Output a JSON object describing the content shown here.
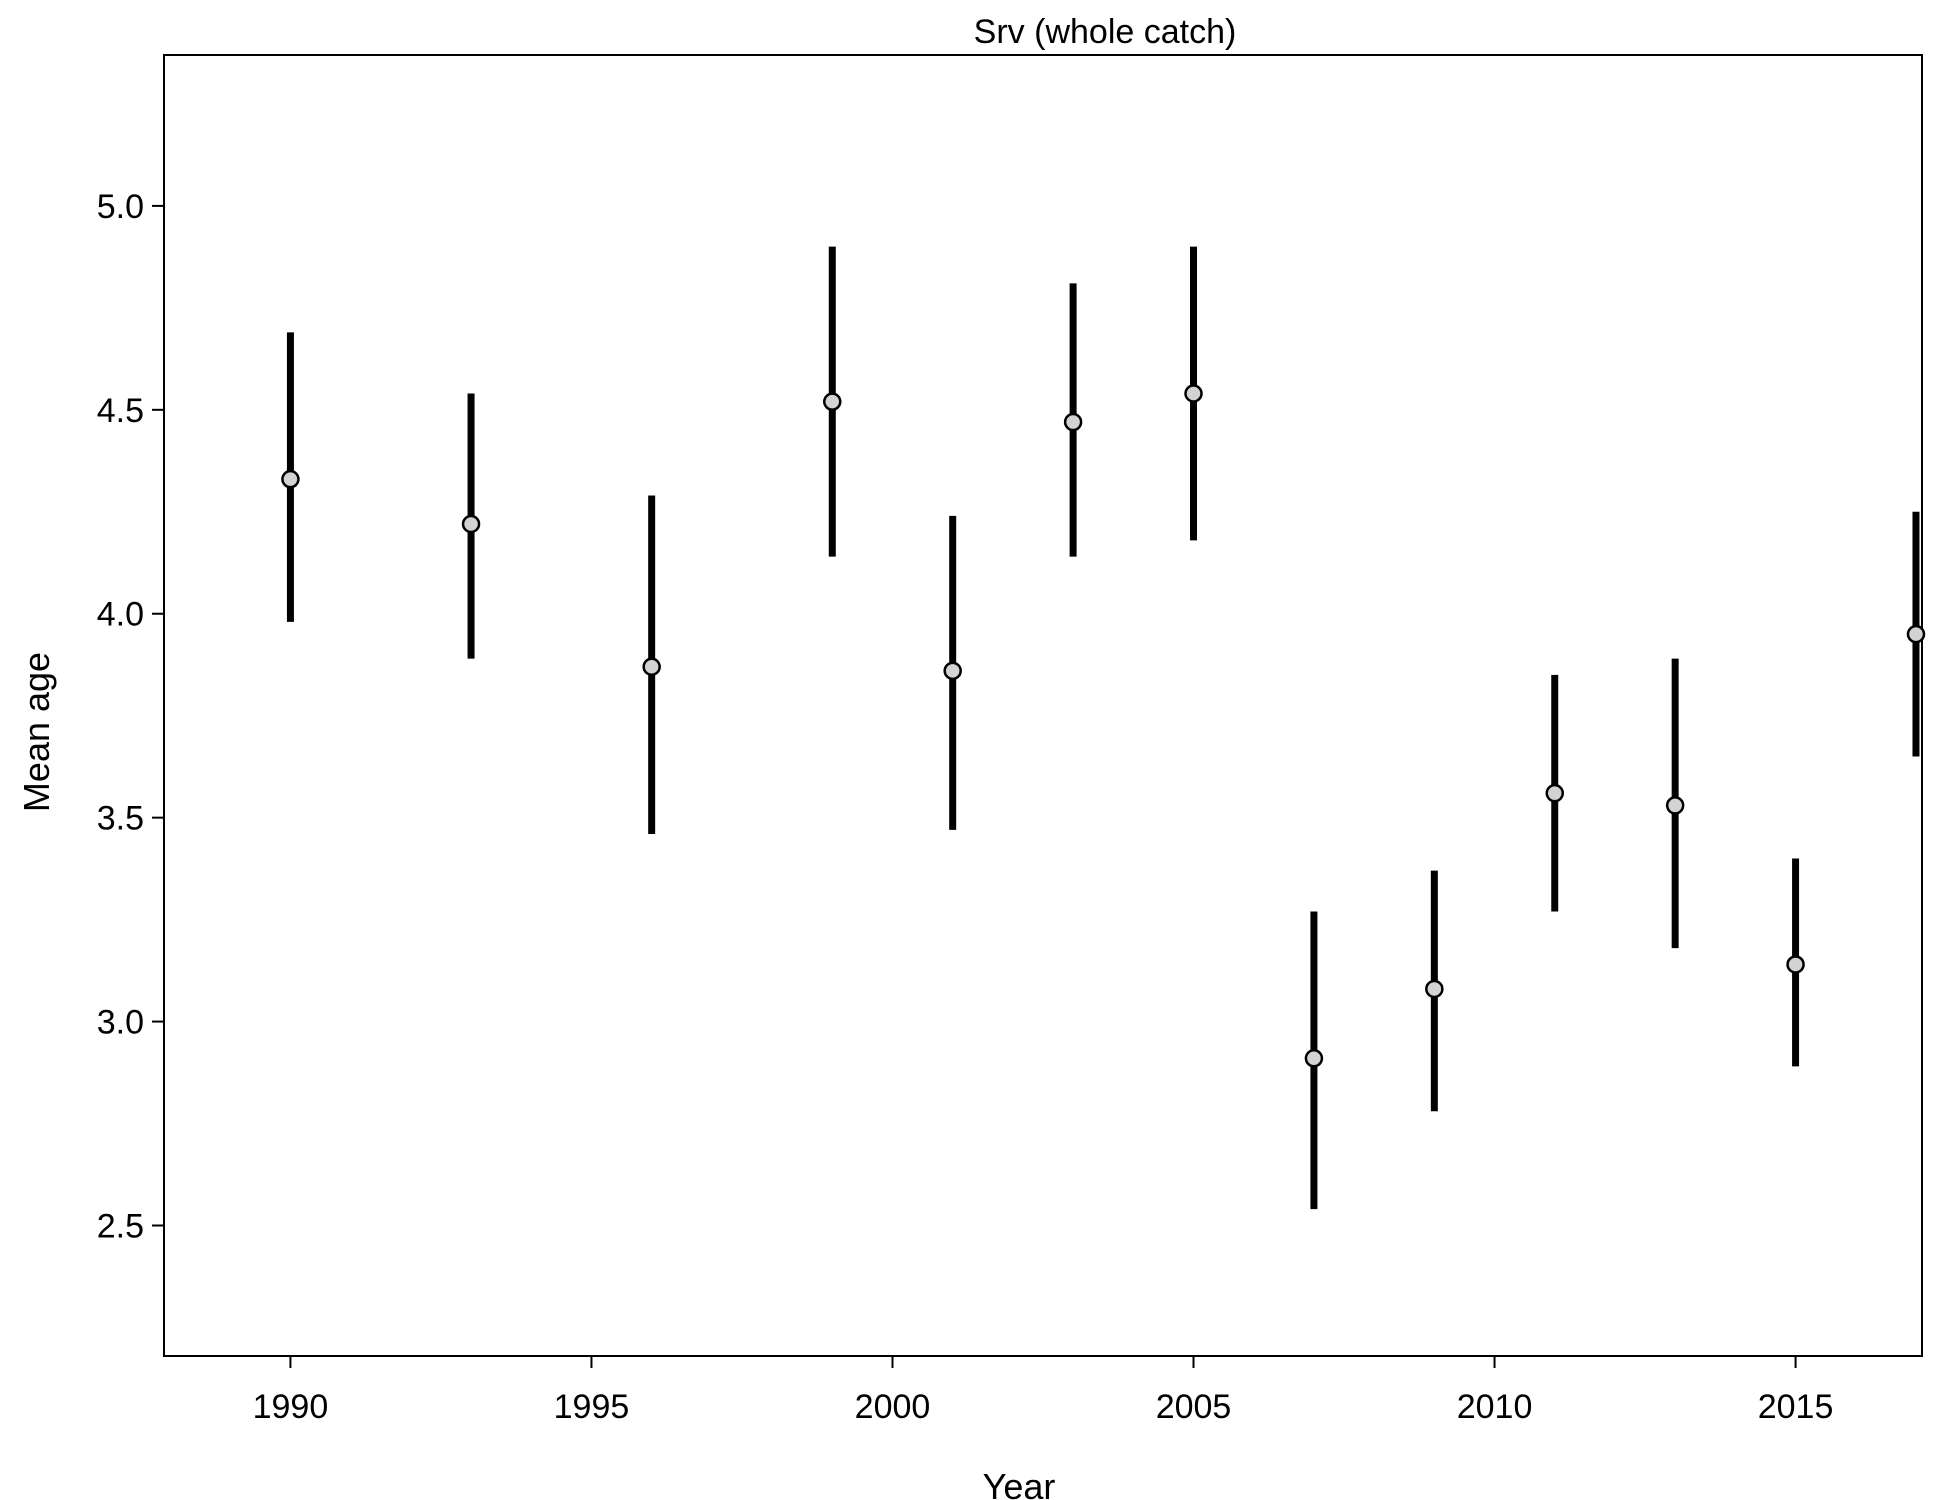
{
  "chart_data": {
    "type": "scatter",
    "title": "Srv (whole catch)",
    "xlabel": "Year",
    "ylabel": "Mean age",
    "xlim": [
      1987.9,
      2017.1
    ],
    "ylim": [
      2.18,
      5.37
    ],
    "xticks": [
      1990,
      1995,
      2000,
      2005,
      2010,
      2015
    ],
    "yticks": [
      "2.5",
      "3.0",
      "3.5",
      "4.0",
      "4.5",
      "5.0"
    ],
    "grid": false,
    "series": [
      {
        "points": [
          {
            "x": 1990,
            "y": 4.33,
            "lower": 3.98,
            "upper": 4.69
          },
          {
            "x": 1993,
            "y": 4.22,
            "lower": 3.89,
            "upper": 4.54
          },
          {
            "x": 1996,
            "y": 3.87,
            "lower": 3.46,
            "upper": 4.29
          },
          {
            "x": 1999,
            "y": 4.52,
            "lower": 4.14,
            "upper": 4.9
          },
          {
            "x": 2001,
            "y": 3.86,
            "lower": 3.47,
            "upper": 4.24
          },
          {
            "x": 2003,
            "y": 4.47,
            "lower": 4.14,
            "upper": 4.81
          },
          {
            "x": 2005,
            "y": 4.54,
            "lower": 4.18,
            "upper": 4.9
          },
          {
            "x": 2007,
            "y": 2.91,
            "lower": 2.54,
            "upper": 3.27
          },
          {
            "x": 2009,
            "y": 3.08,
            "lower": 2.78,
            "upper": 3.37
          },
          {
            "x": 2011,
            "y": 3.56,
            "lower": 3.27,
            "upper": 3.85
          },
          {
            "x": 2013,
            "y": 3.53,
            "lower": 3.18,
            "upper": 3.89
          },
          {
            "x": 2015,
            "y": 3.14,
            "lower": 2.89,
            "upper": 3.4
          },
          {
            "x": 2017,
            "y": 3.95,
            "lower": 3.65,
            "upper": 4.25
          }
        ]
      }
    ],
    "colors": {
      "errorbar": "#000000",
      "point_fill": "#d3d3d3",
      "point_stroke": "#000000",
      "frame": "#000000"
    }
  }
}
